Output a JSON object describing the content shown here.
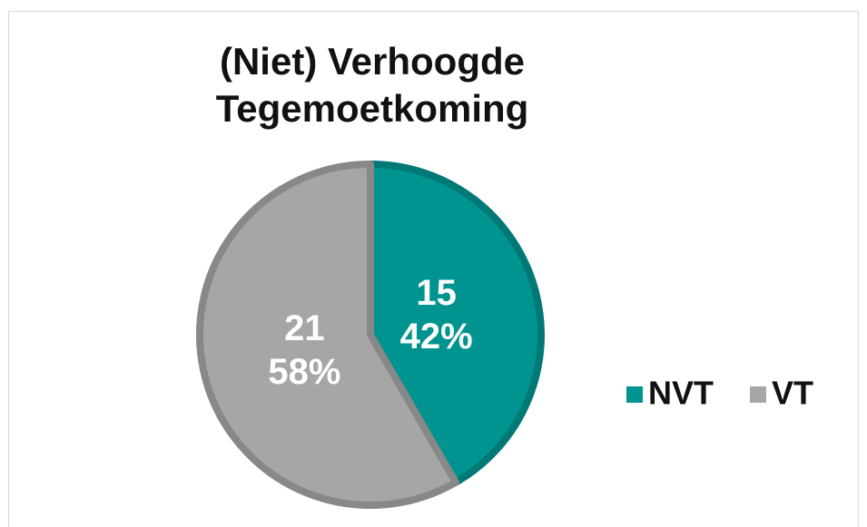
{
  "chart_data": {
    "type": "pie",
    "title": "(Niet) Verhoogde Tegemoetkoming",
    "categories": [
      "NVT",
      "VT"
    ],
    "values": [
      15,
      21
    ],
    "value_labels": [
      "42%",
      "58%"
    ],
    "colors": [
      "#009490",
      "#a6a6a6"
    ],
    "legend": "right"
  }
}
